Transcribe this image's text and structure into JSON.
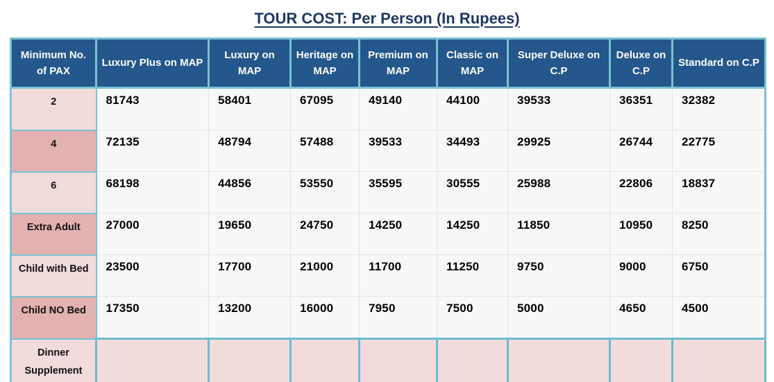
{
  "title": "TOUR COST: Per Person (In Rupees)",
  "colors": {
    "title_text": "#1F3864",
    "header_background": "#24578B",
    "header_text": "#FFFFFF",
    "border_cyan": "#79C2D5",
    "row_label_light_pink": "#F2DCDB",
    "row_label_dark_pink": "#E3B1B0",
    "data_cell_background": "#F8F8F8",
    "data_grid_line": "#E4E4E4"
  },
  "table": {
    "columns": [
      "Minimum No. of PAX",
      "Luxury Plus on MAP",
      "Luxury on MAP",
      "Heritage on MAP",
      "Premium on MAP",
      "Classic on MAP",
      "Super Deluxe on C.P",
      "Deluxe on C.P",
      "Standard on C.P"
    ],
    "rows": [
      {
        "label": "2",
        "shade": "light",
        "dinner": false,
        "values": [
          "81743",
          "58401",
          "67095",
          "49140",
          "44100",
          "39533",
          "36351",
          "32382"
        ]
      },
      {
        "label": "4",
        "shade": "dark",
        "dinner": false,
        "values": [
          "72135",
          "48794",
          "57488",
          "39533",
          "34493",
          "29925",
          "26744",
          "22775"
        ]
      },
      {
        "label": "6",
        "shade": "light",
        "dinner": false,
        "values": [
          "68198",
          "44856",
          "53550",
          "35595",
          "30555",
          "25988",
          "22806",
          "18837"
        ]
      },
      {
        "label": "Extra Adult",
        "shade": "dark",
        "dinner": false,
        "values": [
          "27000",
          "19650",
          "24750",
          "14250",
          "14250",
          "11850",
          "10950",
          "8250"
        ]
      },
      {
        "label": "Child with Bed",
        "shade": "light",
        "dinner": false,
        "values": [
          "23500",
          "17700",
          "21000",
          "11700",
          "11250",
          "9750",
          "9000",
          "6750"
        ]
      },
      {
        "label": "Child NO Bed",
        "shade": "dark",
        "dinner": false,
        "values": [
          "17350",
          "13200",
          "16000",
          "7950",
          "7500",
          "5000",
          "4650",
          "4500"
        ]
      },
      {
        "label": "Dinner Supplement",
        "shade": "light",
        "dinner": true,
        "values": [
          "",
          "",
          "",
          "",
          "",
          "",
          "",
          ""
        ]
      }
    ]
  }
}
